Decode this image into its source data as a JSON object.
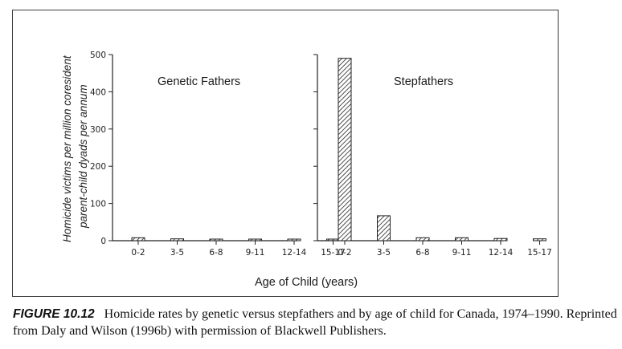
{
  "figure": {
    "y_axis_label_line1": "Homicide victims per million coresident",
    "y_axis_label_line2": "parent-child dyads per annum",
    "x_axis_label": "Age of Child (years)",
    "y_ticks": [
      "0",
      "100",
      "200",
      "300",
      "400",
      "500"
    ],
    "panels": [
      {
        "title": "Genetic Fathers"
      },
      {
        "title": "Stepfathers"
      }
    ],
    "categories": [
      "0-2",
      "3-5",
      "6-8",
      "9-11",
      "12-14",
      "15-17"
    ]
  },
  "caption": {
    "label": "FIGURE 10.12",
    "text": "Homicide rates by genetic versus stepfathers and by age of child for Canada, 1974–1990. Reprinted from Daly and Wilson (1996b) with permission of Blackwell Publishers."
  },
  "chart_data": {
    "type": "bar",
    "title": "",
    "xlabel": "Age of Child (years)",
    "ylabel": "Homicide victims per million coresident parent-child dyads per annum",
    "ylim": [
      0,
      500
    ],
    "grid": false,
    "categories": [
      "0-2",
      "3-5",
      "6-8",
      "9-11",
      "12-14",
      "15-17"
    ],
    "series": [
      {
        "name": "Genetic Fathers",
        "values": [
          8,
          5,
          2,
          1,
          2,
          1
        ]
      },
      {
        "name": "Stepfathers",
        "values": [
          490,
          67,
          8,
          8,
          6,
          5
        ]
      }
    ],
    "panels": [
      "Genetic Fathers",
      "Stepfathers"
    ],
    "legend": "none (panel titles)"
  }
}
